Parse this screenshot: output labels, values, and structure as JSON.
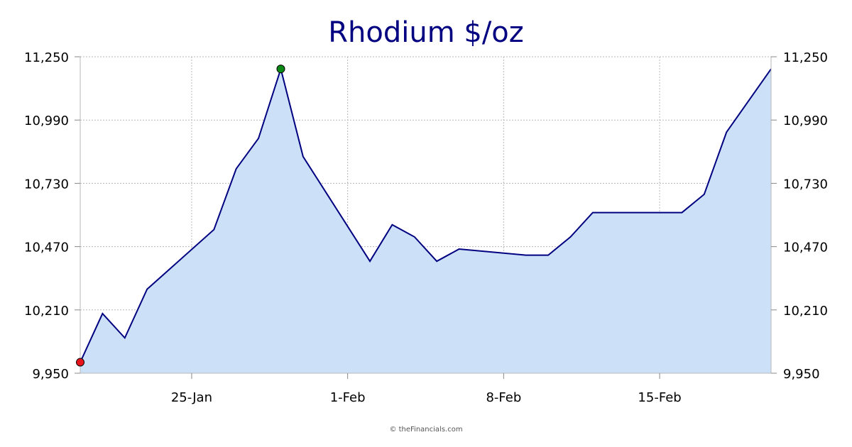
{
  "chart_data": {
    "type": "area",
    "title": "Rhodium $/oz",
    "credit": "© theFinancials.com",
    "ylim": [
      9950,
      11250
    ],
    "y_ticks": [
      "9,950",
      "10,210",
      "10,470",
      "10,730",
      "10,990",
      "11,250"
    ],
    "y_tick_values": [
      9950,
      10210,
      10470,
      10730,
      10990,
      11250
    ],
    "x_ticks": [
      "25-Jan",
      "1-Feb",
      "8-Feb",
      "15-Feb"
    ],
    "x_tick_dates": [
      "2024-01-25",
      "2024-02-01",
      "2024-02-08",
      "2024-02-15"
    ],
    "grid": true,
    "colors": {
      "line": "#000080",
      "fill": "#cce0f7",
      "low_marker": "#e8141b",
      "high_marker": "#0a8a14",
      "title": "#000080"
    },
    "series": [
      {
        "x": [
          "2024-01-20",
          "2024-01-21",
          "2024-01-22",
          "2024-01-23",
          "2024-01-26",
          "2024-01-27",
          "2024-01-28",
          "2024-01-29",
          "2024-01-30",
          "2024-02-02",
          "2024-02-03",
          "2024-02-04",
          "2024-02-05",
          "2024-02-06",
          "2024-02-09",
          "2024-02-10",
          "2024-02-11",
          "2024-02-12",
          "2024-02-13",
          "2024-02-16",
          "2024-02-17",
          "2024-02-18",
          "2024-02-20"
        ],
        "values": [
          9995,
          10195,
          10095,
          10295,
          10540,
          10790,
          10915,
          11200,
          10840,
          10410,
          10560,
          10510,
          10410,
          10460,
          10435,
          10435,
          10510,
          10610,
          10610,
          10610,
          10685,
          10940,
          11200
        ]
      }
    ],
    "markers": {
      "low_index": 0,
      "high_index": 7
    }
  }
}
